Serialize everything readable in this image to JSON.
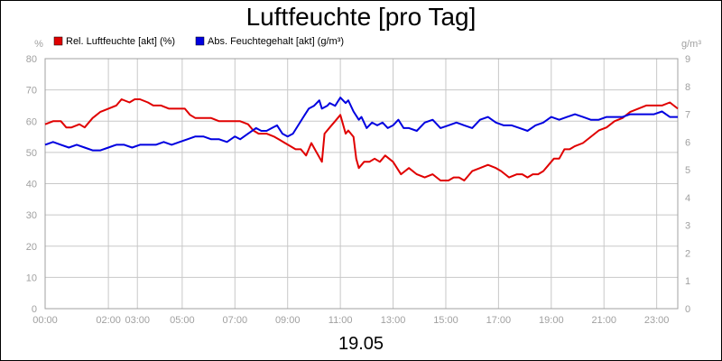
{
  "chart_data": {
    "type": "line",
    "title": "Luftfeuchte [pro Tag]",
    "date_label": "19.05",
    "left_unit": "%",
    "right_unit": "g/m³",
    "y_left": {
      "min": 0,
      "max": 80,
      "ticks": [
        "0",
        "10",
        "20",
        "30",
        "40",
        "50",
        "60",
        "70",
        "80"
      ]
    },
    "y_right": {
      "min": 0,
      "max": 9,
      "ticks": [
        "0",
        "1",
        "2",
        "3",
        "4",
        "5",
        "6",
        "7",
        "8",
        "9"
      ]
    },
    "x_range_hours": [
      0,
      24
    ],
    "x_ticks": [
      {
        "h": 0,
        "label": "00:00"
      },
      {
        "h": 2.4,
        "label": "02:00"
      },
      {
        "h": 3.5,
        "label": "03:00"
      },
      {
        "h": 5.2,
        "label": "05:00"
      },
      {
        "h": 7.2,
        "label": "07:00"
      },
      {
        "h": 9.2,
        "label": "09:00"
      },
      {
        "h": 11.2,
        "label": "11:00"
      },
      {
        "h": 13.2,
        "label": "13:00"
      },
      {
        "h": 15.2,
        "label": "15:00"
      },
      {
        "h": 17.2,
        "label": "17:00"
      },
      {
        "h": 19.2,
        "label": "19:00"
      },
      {
        "h": 21.2,
        "label": "21:00"
      },
      {
        "h": 23.2,
        "label": "23:00"
      }
    ],
    "grid": true,
    "legend_position": "top-left",
    "series": [
      {
        "name": "Rel. Luftfeuchte [akt] (%)",
        "color": "#e00000",
        "axis": "left",
        "points": [
          [
            0.0,
            59
          ],
          [
            0.3,
            60
          ],
          [
            0.6,
            60
          ],
          [
            0.8,
            58
          ],
          [
            1.0,
            58
          ],
          [
            1.3,
            59
          ],
          [
            1.5,
            58
          ],
          [
            1.8,
            61
          ],
          [
            2.1,
            63
          ],
          [
            2.4,
            64
          ],
          [
            2.7,
            65
          ],
          [
            2.9,
            67
          ],
          [
            3.2,
            66
          ],
          [
            3.4,
            67
          ],
          [
            3.6,
            67
          ],
          [
            3.9,
            66
          ],
          [
            4.1,
            65
          ],
          [
            4.4,
            65
          ],
          [
            4.7,
            64
          ],
          [
            5.0,
            64
          ],
          [
            5.3,
            64
          ],
          [
            5.5,
            62
          ],
          [
            5.7,
            61
          ],
          [
            6.0,
            61
          ],
          [
            6.3,
            61
          ],
          [
            6.6,
            60
          ],
          [
            6.9,
            60
          ],
          [
            7.2,
            60
          ],
          [
            7.4,
            60
          ],
          [
            7.7,
            59
          ],
          [
            7.9,
            57
          ],
          [
            8.1,
            56
          ],
          [
            8.4,
            56
          ],
          [
            8.7,
            55
          ],
          [
            8.9,
            54
          ],
          [
            9.1,
            53
          ],
          [
            9.3,
            52
          ],
          [
            9.5,
            51
          ],
          [
            9.7,
            51
          ],
          [
            9.9,
            49
          ],
          [
            10.1,
            53
          ],
          [
            10.3,
            50
          ],
          [
            10.5,
            47
          ],
          [
            10.6,
            56
          ],
          [
            10.8,
            58
          ],
          [
            11.0,
            60
          ],
          [
            11.2,
            62
          ],
          [
            11.4,
            56
          ],
          [
            11.5,
            57
          ],
          [
            11.7,
            55
          ],
          [
            11.8,
            48
          ],
          [
            11.9,
            45
          ],
          [
            12.1,
            47
          ],
          [
            12.3,
            47
          ],
          [
            12.5,
            48
          ],
          [
            12.7,
            47
          ],
          [
            12.9,
            49
          ],
          [
            13.2,
            47
          ],
          [
            13.5,
            43
          ],
          [
            13.8,
            45
          ],
          [
            14.1,
            43
          ],
          [
            14.4,
            42
          ],
          [
            14.7,
            43
          ],
          [
            15.0,
            41
          ],
          [
            15.3,
            41
          ],
          [
            15.5,
            42
          ],
          [
            15.7,
            42
          ],
          [
            15.9,
            41
          ],
          [
            16.2,
            44
          ],
          [
            16.5,
            45
          ],
          [
            16.8,
            46
          ],
          [
            17.1,
            45
          ],
          [
            17.3,
            44
          ],
          [
            17.6,
            42
          ],
          [
            17.9,
            43
          ],
          [
            18.1,
            43
          ],
          [
            18.3,
            42
          ],
          [
            18.5,
            43
          ],
          [
            18.7,
            43
          ],
          [
            18.9,
            44
          ],
          [
            19.1,
            46
          ],
          [
            19.3,
            48
          ],
          [
            19.5,
            48
          ],
          [
            19.7,
            51
          ],
          [
            19.9,
            51
          ],
          [
            20.1,
            52
          ],
          [
            20.4,
            53
          ],
          [
            20.7,
            55
          ],
          [
            21.0,
            57
          ],
          [
            21.3,
            58
          ],
          [
            21.6,
            60
          ],
          [
            21.9,
            61
          ],
          [
            22.2,
            63
          ],
          [
            22.5,
            64
          ],
          [
            22.8,
            65
          ],
          [
            23.1,
            65
          ],
          [
            23.4,
            65
          ],
          [
            23.7,
            66
          ],
          [
            24.0,
            64
          ]
        ]
      },
      {
        "name": "Abs. Feuchtegehalt [akt] (g/m³)",
        "color": "#0000e0",
        "axis": "right",
        "points": [
          [
            0.0,
            5.9
          ],
          [
            0.3,
            6.0
          ],
          [
            0.6,
            5.9
          ],
          [
            0.9,
            5.8
          ],
          [
            1.2,
            5.9
          ],
          [
            1.5,
            5.8
          ],
          [
            1.8,
            5.7
          ],
          [
            2.1,
            5.7
          ],
          [
            2.4,
            5.8
          ],
          [
            2.7,
            5.9
          ],
          [
            3.0,
            5.9
          ],
          [
            3.3,
            5.8
          ],
          [
            3.6,
            5.9
          ],
          [
            3.9,
            5.9
          ],
          [
            4.2,
            5.9
          ],
          [
            4.5,
            6.0
          ],
          [
            4.8,
            5.9
          ],
          [
            5.1,
            6.0
          ],
          [
            5.4,
            6.1
          ],
          [
            5.7,
            6.2
          ],
          [
            6.0,
            6.2
          ],
          [
            6.3,
            6.1
          ],
          [
            6.6,
            6.1
          ],
          [
            6.9,
            6.0
          ],
          [
            7.2,
            6.2
          ],
          [
            7.4,
            6.1
          ],
          [
            7.7,
            6.3
          ],
          [
            8.0,
            6.5
          ],
          [
            8.2,
            6.4
          ],
          [
            8.4,
            6.4
          ],
          [
            8.6,
            6.5
          ],
          [
            8.8,
            6.6
          ],
          [
            9.0,
            6.3
          ],
          [
            9.2,
            6.2
          ],
          [
            9.4,
            6.3
          ],
          [
            9.6,
            6.6
          ],
          [
            9.8,
            6.9
          ],
          [
            10.0,
            7.2
          ],
          [
            10.2,
            7.3
          ],
          [
            10.4,
            7.5
          ],
          [
            10.5,
            7.2
          ],
          [
            10.7,
            7.3
          ],
          [
            10.8,
            7.4
          ],
          [
            11.0,
            7.3
          ],
          [
            11.2,
            7.6
          ],
          [
            11.4,
            7.4
          ],
          [
            11.5,
            7.5
          ],
          [
            11.7,
            7.1
          ],
          [
            11.9,
            6.8
          ],
          [
            12.0,
            6.9
          ],
          [
            12.2,
            6.5
          ],
          [
            12.4,
            6.7
          ],
          [
            12.6,
            6.6
          ],
          [
            12.8,
            6.7
          ],
          [
            13.0,
            6.5
          ],
          [
            13.2,
            6.6
          ],
          [
            13.4,
            6.8
          ],
          [
            13.6,
            6.5
          ],
          [
            13.8,
            6.5
          ],
          [
            14.1,
            6.4
          ],
          [
            14.4,
            6.7
          ],
          [
            14.7,
            6.8
          ],
          [
            15.0,
            6.5
          ],
          [
            15.3,
            6.6
          ],
          [
            15.6,
            6.7
          ],
          [
            15.9,
            6.6
          ],
          [
            16.2,
            6.5
          ],
          [
            16.5,
            6.8
          ],
          [
            16.8,
            6.9
          ],
          [
            17.1,
            6.7
          ],
          [
            17.4,
            6.6
          ],
          [
            17.7,
            6.6
          ],
          [
            18.0,
            6.5
          ],
          [
            18.3,
            6.4
          ],
          [
            18.6,
            6.6
          ],
          [
            18.9,
            6.7
          ],
          [
            19.2,
            6.9
          ],
          [
            19.5,
            6.8
          ],
          [
            19.8,
            6.9
          ],
          [
            20.1,
            7.0
          ],
          [
            20.4,
            6.9
          ],
          [
            20.7,
            6.8
          ],
          [
            21.0,
            6.8
          ],
          [
            21.3,
            6.9
          ],
          [
            21.6,
            6.9
          ],
          [
            21.9,
            6.9
          ],
          [
            22.2,
            7.0
          ],
          [
            22.5,
            7.0
          ],
          [
            22.8,
            7.0
          ],
          [
            23.1,
            7.0
          ],
          [
            23.4,
            7.1
          ],
          [
            23.7,
            6.9
          ],
          [
            24.0,
            6.9
          ]
        ]
      }
    ]
  }
}
